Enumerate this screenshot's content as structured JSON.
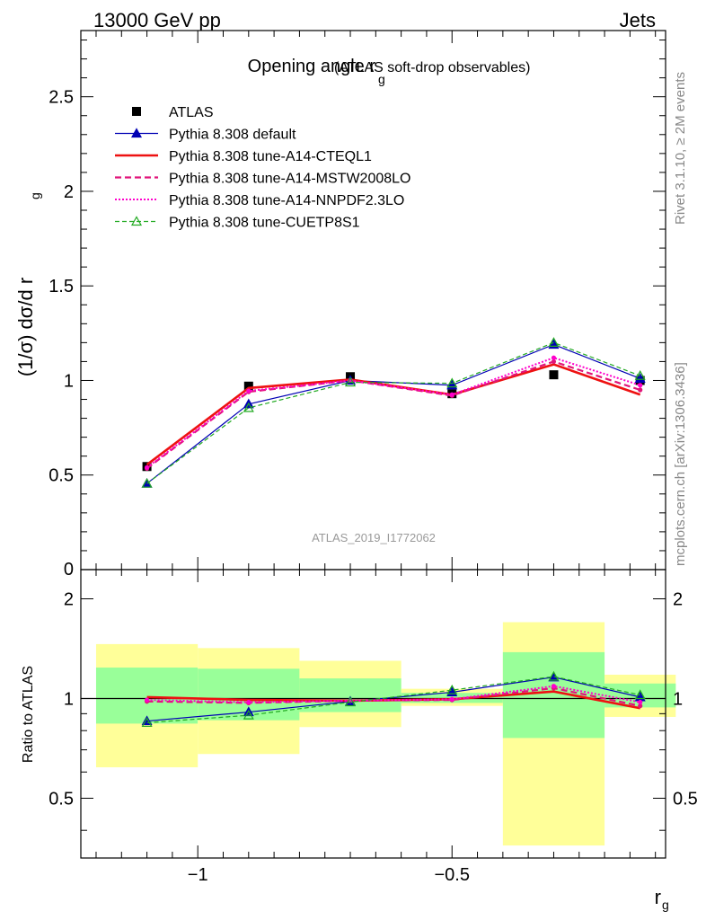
{
  "header": {
    "energy_label": "13000 GeV pp",
    "category_label": "Jets"
  },
  "side_labels": {
    "rivet": "Rivet 3.1.10, ≥ 2M events",
    "mcplots": "mcplots.cern.ch [arXiv:1306.3436]"
  },
  "analysis_id": "ATLAS_2019_I1772062",
  "colors": {
    "atlas": "#000000",
    "default": "#0000b4",
    "cteql1": "#ee1111",
    "mstw": "#e0157a",
    "nnpdf": "#ff00cc",
    "cuetp8s1": "#22aa22",
    "band_outer": "#ffff99",
    "band_inner": "#99ff99"
  },
  "chart_data": [
    {
      "type": "line",
      "title": "Opening angle r",
      "title_sub": "g",
      "title_note": "(ATLAS soft-drop observables)",
      "ylabel": "(1/σ) dσ/d r",
      "ylabel_sub": "g",
      "xlabel": "r",
      "xlabel_sub": "g",
      "xlim": [
        -1.23,
        -0.08
      ],
      "ylim": [
        0,
        2.85
      ],
      "yticks": [
        0.5,
        1,
        1.5,
        2,
        2.5
      ],
      "ytick_labels": [
        "0.5",
        "1",
        "1.5",
        "2",
        "2.5"
      ],
      "y_cut_label": "0",
      "x": [
        -1.1,
        -0.9,
        -0.7,
        -0.5,
        -0.3,
        -0.13
      ],
      "series": [
        {
          "name": "ATLAS",
          "key": "atlas",
          "values": [
            0.545,
            0.97,
            1.02,
            0.93,
            1.03,
            1.0
          ]
        },
        {
          "name": "Pythia 8.308 default",
          "key": "default",
          "values": [
            0.455,
            0.875,
            1.0,
            0.975,
            1.19,
            1.01
          ]
        },
        {
          "name": "Pythia 8.308 tune-A14-CTEQL1",
          "key": "cteql1",
          "values": [
            0.555,
            0.96,
            1.005,
            0.925,
            1.085,
            0.925
          ]
        },
        {
          "name": "Pythia 8.308 tune-A14-MSTW2008LO",
          "key": "mstw",
          "values": [
            0.535,
            0.94,
            1.0,
            0.92,
            1.1,
            0.95
          ]
        },
        {
          "name": "Pythia 8.308 tune-A14-NNPDF2.3LO",
          "key": "nnpdf",
          "values": [
            0.54,
            0.945,
            1.0,
            0.925,
            1.12,
            0.975
          ]
        },
        {
          "name": "Pythia 8.308 tune-CUETP8S1",
          "key": "cuetp8s1",
          "values": [
            0.455,
            0.855,
            0.99,
            0.985,
            1.2,
            1.025
          ]
        }
      ]
    },
    {
      "type": "line",
      "ylabel": "Ratio to ATLAS",
      "ylim": [
        0.33,
        2.45
      ],
      "yticks": [
        0.5,
        1,
        2
      ],
      "ytick_labels": [
        "0.5",
        "1",
        "2"
      ],
      "xticks": [
        -1,
        -0.5
      ],
      "xtick_labels": [
        "−1",
        "−0.5"
      ],
      "bin_edges": [
        -1.2,
        -1.0,
        -0.8,
        -0.6,
        -0.4,
        -0.2,
        -0.06
      ],
      "band_outer": [
        [
          0.62,
          1.46
        ],
        [
          0.68,
          1.42
        ],
        [
          0.82,
          1.3
        ],
        [
          0.95,
          1.07
        ],
        [
          0.36,
          1.7
        ],
        [
          0.88,
          1.18
        ]
      ],
      "band_inner": [
        [
          0.84,
          1.24
        ],
        [
          0.86,
          1.23
        ],
        [
          0.91,
          1.15
        ],
        [
          0.97,
          1.04
        ],
        [
          0.76,
          1.38
        ],
        [
          0.94,
          1.11
        ]
      ],
      "x": [
        -1.1,
        -0.9,
        -0.7,
        -0.5,
        -0.3,
        -0.13
      ],
      "series": [
        {
          "name": "Pythia 8.308 default",
          "key": "default",
          "values": [
            0.855,
            0.91,
            0.98,
            1.045,
            1.16,
            1.01
          ]
        },
        {
          "name": "Pythia 8.308 tune-A14-CTEQL1",
          "key": "cteql1",
          "values": [
            1.01,
            0.99,
            0.985,
            0.995,
            1.05,
            0.935
          ]
        },
        {
          "name": "Pythia 8.308 tune-A14-MSTW2008LO",
          "key": "mstw",
          "values": [
            0.98,
            0.97,
            0.985,
            0.99,
            1.075,
            0.95
          ]
        },
        {
          "name": "Pythia 8.308 tune-A14-NNPDF2.3LO",
          "key": "nnpdf",
          "values": [
            0.99,
            0.975,
            0.985,
            0.995,
            1.09,
            0.975
          ]
        },
        {
          "name": "Pythia 8.308 tune-CUETP8S1",
          "key": "cuetp8s1",
          "values": [
            0.845,
            0.89,
            0.975,
            1.06,
            1.165,
            1.025
          ]
        }
      ]
    }
  ]
}
